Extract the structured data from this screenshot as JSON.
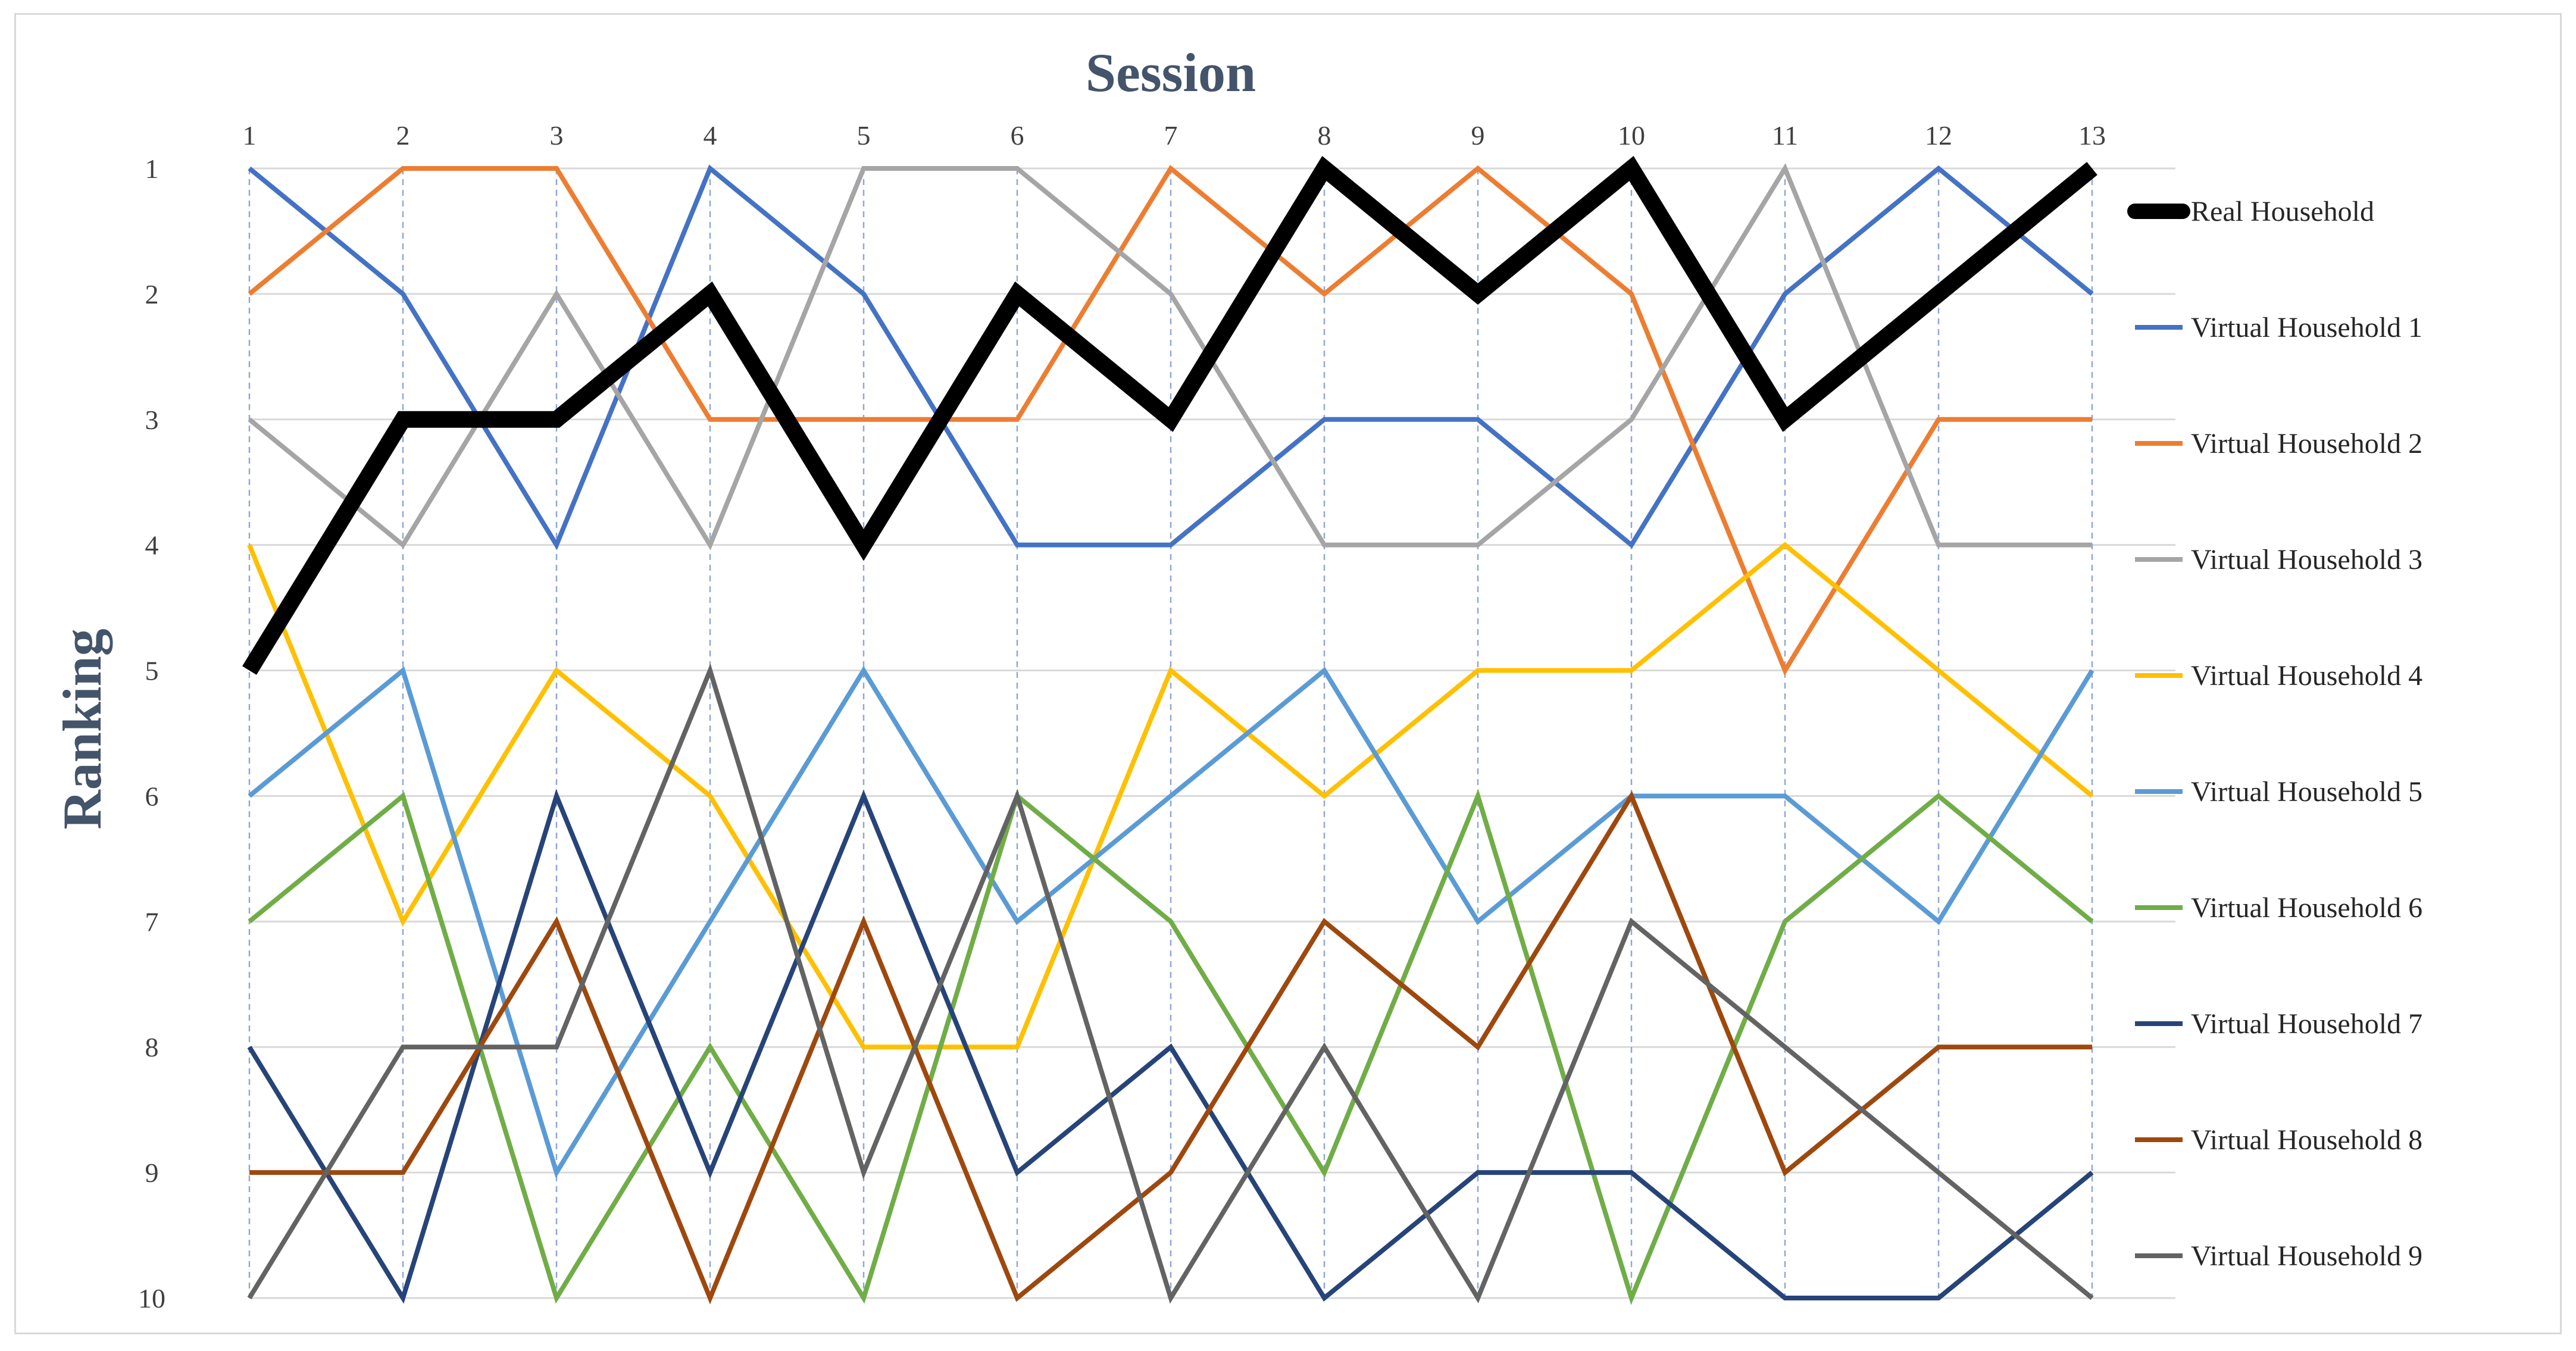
{
  "chart_data": {
    "type": "line",
    "title": "",
    "xlabel": "Session",
    "ylabel": "Ranking",
    "x": [
      1,
      2,
      3,
      4,
      5,
      6,
      7,
      8,
      9,
      10,
      11,
      12,
      13
    ],
    "x_tick_labels": [
      "1",
      "2",
      "3",
      "4",
      "5",
      "6",
      "7",
      "8",
      "9",
      "10",
      "11",
      "12",
      "13"
    ],
    "y_tick_labels": [
      "1",
      "2",
      "3",
      "4",
      "5",
      "6",
      "7",
      "8",
      "9",
      "10"
    ],
    "ylim": [
      1,
      10
    ],
    "y_inverted": true,
    "x_axis_position": "top",
    "grid": "horizontal solid, vertical dashed",
    "legend_position": "right",
    "series": [
      {
        "name": "Real Household",
        "color": "#000000",
        "emphasis": "bold",
        "values": [
          5,
          3,
          3,
          2,
          4,
          2,
          3,
          1,
          2,
          1,
          3,
          2,
          1
        ]
      },
      {
        "name": "Virtual Household 1",
        "color": "#4472c4",
        "values": [
          1,
          2,
          4,
          1,
          2,
          4,
          4,
          3,
          3,
          4,
          2,
          1,
          2
        ]
      },
      {
        "name": "Virtual Household 2",
        "color": "#ed7d31",
        "values": [
          2,
          1,
          1,
          3,
          3,
          3,
          1,
          2,
          1,
          2,
          5,
          3,
          3
        ]
      },
      {
        "name": "Virtual Household 3",
        "color": "#a5a5a5",
        "values": [
          3,
          4,
          2,
          4,
          1,
          1,
          2,
          4,
          4,
          3,
          1,
          4,
          4
        ]
      },
      {
        "name": "Virtual Household 4",
        "color": "#ffc000",
        "values": [
          4,
          7,
          5,
          6,
          8,
          8,
          5,
          6,
          5,
          5,
          4,
          5,
          6
        ]
      },
      {
        "name": "Virtual Household 5",
        "color": "#5b9bd5",
        "values": [
          6,
          5,
          9,
          7,
          5,
          7,
          6,
          5,
          7,
          6,
          6,
          7,
          5
        ]
      },
      {
        "name": "Virtual Household 6",
        "color": "#70ad47",
        "values": [
          7,
          6,
          10,
          8,
          10,
          6,
          7,
          9,
          6,
          10,
          7,
          6,
          7
        ]
      },
      {
        "name": "Virtual Household 7",
        "color": "#264478",
        "values": [
          8,
          10,
          6,
          9,
          6,
          9,
          8,
          10,
          9,
          9,
          10,
          10,
          9
        ]
      },
      {
        "name": "Virtual Household 8",
        "color": "#9e480e",
        "values": [
          9,
          9,
          7,
          10,
          7,
          10,
          9,
          7,
          8,
          6,
          9,
          8,
          8
        ]
      },
      {
        "name": "Virtual Household 9",
        "color": "#636363",
        "values": [
          10,
          8,
          8,
          5,
          9,
          6,
          10,
          8,
          10,
          7,
          8,
          9,
          10
        ]
      }
    ]
  }
}
